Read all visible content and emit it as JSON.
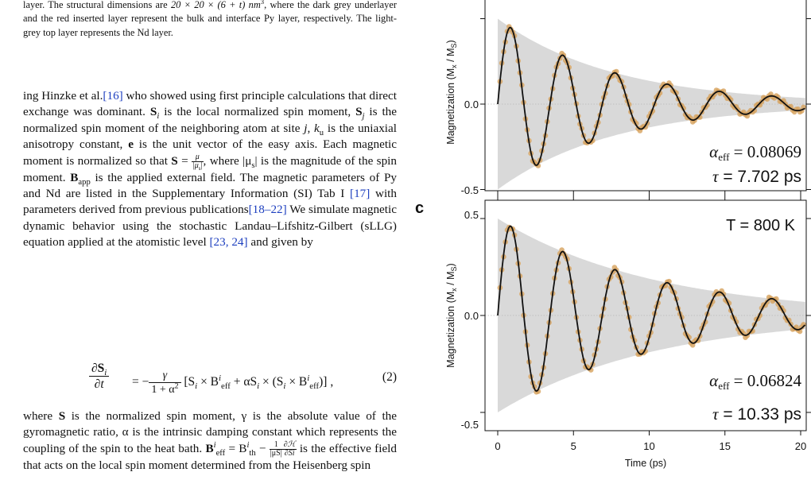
{
  "caption": {
    "l1a": "layer. The structural dimensions are ",
    "dims": "20 × 20 × (6 + t) nm",
    "dims_exp": "3",
    "l1b": ", where the",
    "rest": "dark grey underlayer and the red inserted layer represent the bulk and interface Py layer, respectively. The light-grey top layer represents the Nd layer."
  },
  "body": {
    "p1_a": "ing Hinzke et al.",
    "cite16": "[16]",
    "p1_b": " who showed using first principle calculations that direct exchange was dominant. ",
    "Si": "S",
    "sub_i": "i",
    "p1_c": " is the local normalized spin moment, ",
    "Sj": "S",
    "sub_j": "j",
    "p1_d": " is the normalized spin moment of the neighboring atom at site ",
    "j": "j",
    "p1_e": ", ",
    "ku": "k",
    "sub_u": "u",
    "p1_f": " is the uniaxial anisotropy constant, ",
    "e": "e",
    "p1_g": " is the unit vector of the easy axis. Each magnetic moment is normalized so that ",
    "S_eq": "S",
    "eq_sign": " = ",
    "mu": "μ",
    "mus": "|μ",
    "sub_s": "s",
    "mus_close": "|",
    "p1_h": ", where |μ",
    "p1_h2": "| is the magnitude of the spin moment. ",
    "Bapp": "B",
    "sub_app": "app",
    "p1_i": " is the applied external field. The magnetic parameters of Py and Nd are listed in the Supplementary Information (SI) Tab I  ",
    "cite17": "[17]",
    "p1_j": " with parameters derived from previous publications",
    "cite18": "[18–22]",
    "p1_k": " We simulate magnetic dynamic behavior using the stochastic Landau–Lifshitz-Gilbert (sLLG) equation applied at the atomistic level ",
    "cite23": "[23, 24]",
    "p1_l": " and given by"
  },
  "equation": {
    "lhs_num": "∂S",
    "lhs_sub": "i",
    "lhs_den": "∂t",
    "eq": " = −",
    "g_num": "γ",
    "g_den": "1 + α",
    "g_den_exp": "2",
    "rhs": "[S",
    "rhs_i": "i",
    "rhs_b": " × B",
    "rhs_sup": "i",
    "rhs_sub": "eff",
    "rhs_c": " + αS",
    "rhs_c_i": "i",
    "rhs_d": " × (S",
    "rhs_d_i": "i",
    "rhs_e": " × B",
    "rhs_e_sup": "i",
    "rhs_e_sub": "eff",
    "rhs_f": ")] ,",
    "number": "(2)"
  },
  "body2": {
    "p2_a": "where ",
    "S": "S",
    "p2_b": " is the normalized spin moment, γ is the absolute value of the gyromagnetic ratio, α is the intrinsic damping constant which represents the coupling of the spin to the heat bath. ",
    "Beff": "B",
    "beff_sup": "i",
    "beff_sub": "eff",
    "p2_eq": " = B",
    "bth_sup": "i",
    "bth_sub": "th",
    "p2_minus": " − ",
    "f1_num": "1",
    "f1_den": "|μS|",
    "f2_num": "∂ℋ",
    "f2_den": "∂Si",
    "p2_c": " is the effective field that acts on the local spin moment determined from the Heisenberg spin"
  },
  "figure": {
    "panel_c_label": "c",
    "y_axis_label": "Magnetization (Mx / MS)",
    "x_axis_label": "Time (ps)",
    "top_panel": {
      "alpha_label": "α",
      "alpha_sub": "eff",
      "alpha_value": " = 0.08069",
      "tau_label": "τ",
      "tau_value": " = 7.702 ps"
    },
    "bottom_panel": {
      "temperature": "T = 800 K",
      "alpha_label": "α",
      "alpha_sub": "eff",
      "alpha_value": " = 0.06824",
      "tau_label": "τ",
      "tau_value": " = 10.33 ps"
    }
  },
  "chart_data": [
    {
      "type": "line",
      "panel": "top",
      "xlim": [
        -0.4,
        20.4
      ],
      "ylim": [
        -0.5,
        0.5
      ],
      "yticks": [
        "-0.5",
        "0.0"
      ],
      "grid": false,
      "fit": {
        "amplitude": 0.5,
        "tau_ps": 7.702,
        "period_ps": 3.45
      },
      "series": [
        {
          "values": "simulation markers (orange circles)"
        }
      ]
    },
    {
      "type": "line",
      "panel": "bottom",
      "xlim": [
        -0.4,
        20.4
      ],
      "ylim": [
        -0.55,
        0.55
      ],
      "xticks": [
        "0",
        "5",
        "10",
        "15",
        "20"
      ],
      "yticks": [
        "0.5",
        "0.0",
        "-0.5"
      ],
      "grid": false,
      "fit": {
        "amplitude": 0.5,
        "tau_ps": 10.33,
        "period_ps": 3.45
      }
    }
  ]
}
